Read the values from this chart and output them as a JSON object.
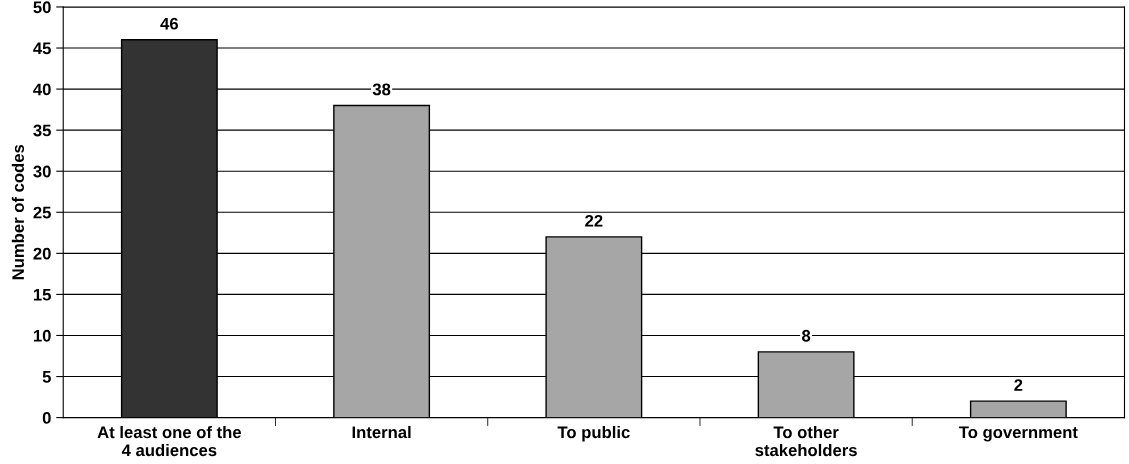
{
  "chart_data": {
    "type": "bar",
    "ylabel": "Number of codes",
    "categories": [
      "At least one of the\n4 audiences",
      "Internal",
      "To public",
      "To other\nstakeholders",
      "To government"
    ],
    "values": [
      46,
      38,
      22,
      8,
      2
    ],
    "colors": [
      "#333333",
      "#a6a6a6",
      "#a6a6a6",
      "#a6a6a6",
      "#a6a6a6"
    ],
    "ylim": [
      0,
      50
    ],
    "yticks": [
      0,
      5,
      10,
      15,
      20,
      25,
      30,
      35,
      40,
      45,
      50
    ],
    "grid": "y",
    "data_labels": true
  }
}
